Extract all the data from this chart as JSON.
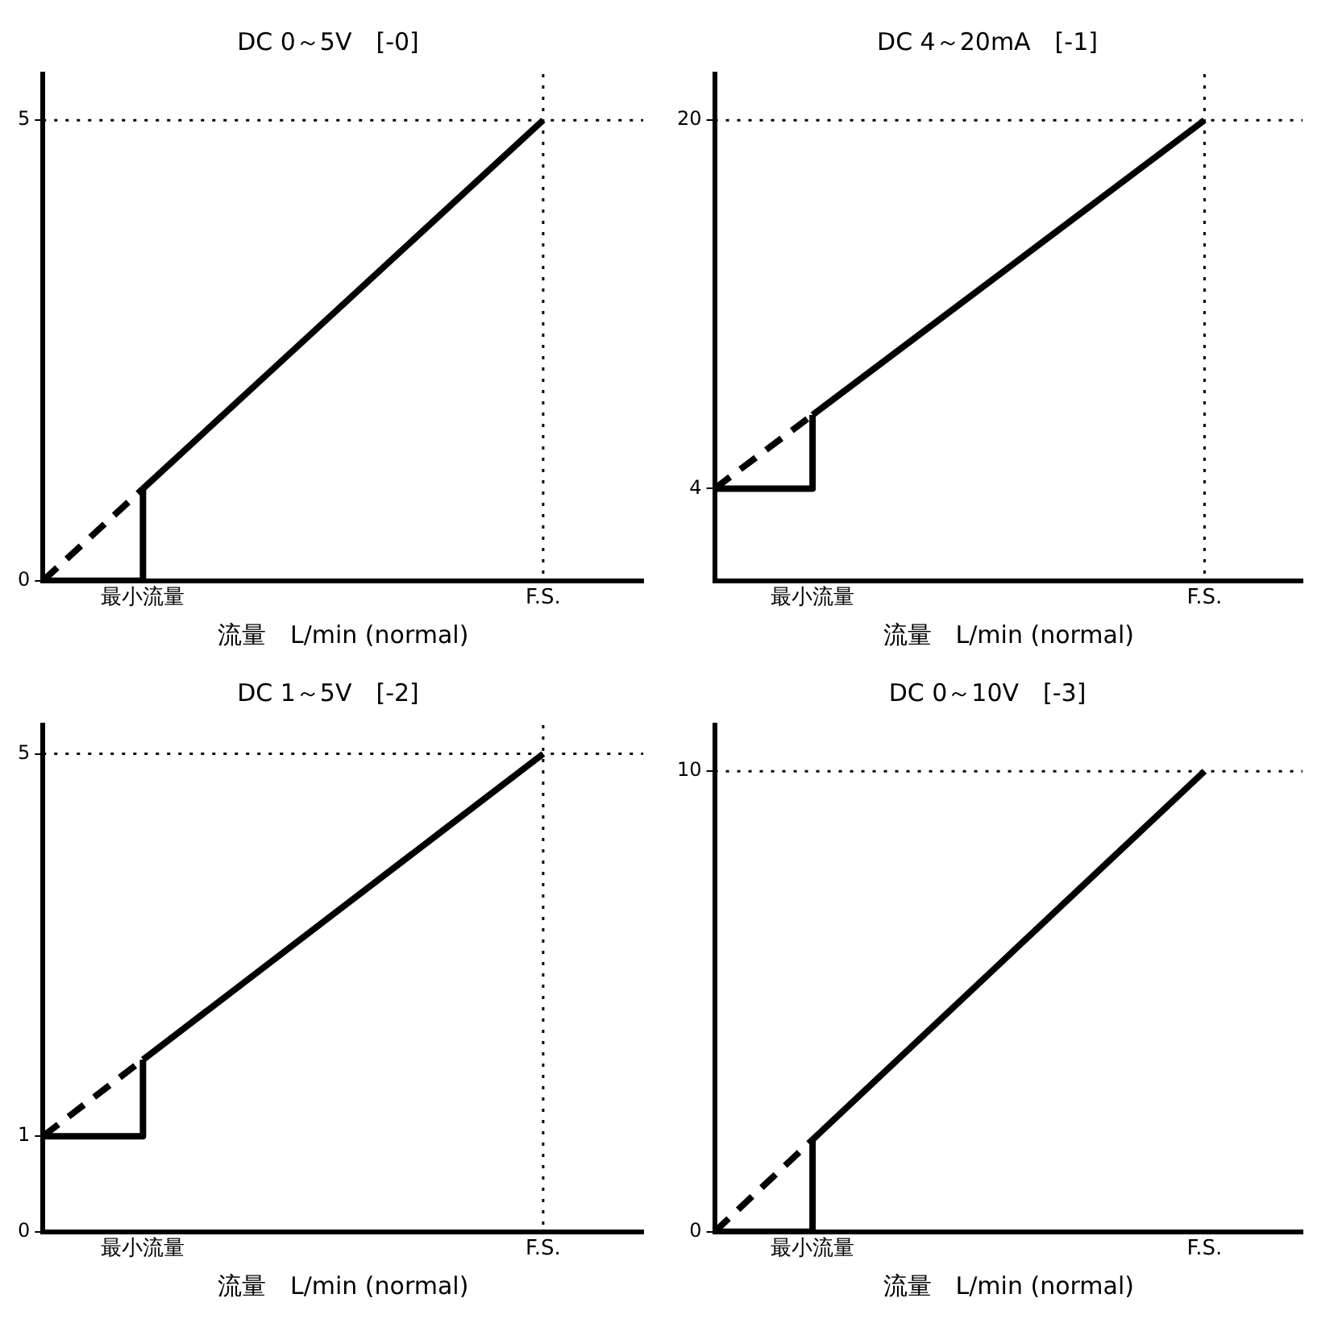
{
  "chart_data": [
    {
      "type": "line",
      "title": "DC 0～5V　[-0]",
      "xlabel": "流量　L/min (normal)",
      "categories": [
        null,
        "最小流量",
        null,
        null,
        null,
        "F.S.",
        null
      ],
      "ylim": [
        0,
        5.5
      ],
      "yticks": [
        0,
        5
      ],
      "grid": false,
      "legend": false,
      "marker": "none",
      "series": [
        {
          "type": "step",
          "color": "#000000",
          "line_style": "solid",
          "values": [
            0,
            1,
            null,
            null,
            null,
            null,
            null
          ]
        },
        {
          "color": "#000000",
          "line_style": "solid",
          "values": [
            null,
            1,
            2,
            3,
            4,
            5,
            null
          ]
        },
        {
          "color": "#000000",
          "line_style": "dashed",
          "values": [
            0,
            1,
            null,
            null,
            null,
            null,
            null
          ]
        }
      ],
      "ref_lines": [
        {
          "axis": "y",
          "value": 5,
          "color": "#000000",
          "line_style": "dotted"
        },
        {
          "axis": "x",
          "value": "F.S.",
          "color": "#000000",
          "line_style": "dotted"
        }
      ]
    },
    {
      "type": "line",
      "title": "DC 4～20mA　[-1]",
      "xlabel": "流量　L/min (normal)",
      "categories": [
        null,
        "最小流量",
        null,
        null,
        null,
        "F.S.",
        null
      ],
      "ylim": [
        0,
        22
      ],
      "yticks": [
        4,
        20
      ],
      "grid": false,
      "legend": false,
      "marker": "none",
      "series": [
        {
          "type": "step",
          "color": "#000000",
          "line_style": "solid",
          "values": [
            4,
            7.2,
            null,
            null,
            null,
            null,
            null
          ]
        },
        {
          "color": "#000000",
          "line_style": "solid",
          "values": [
            null,
            7.2,
            10.4,
            13.6,
            16.8,
            20,
            null
          ]
        },
        {
          "color": "#000000",
          "line_style": "dashed",
          "values": [
            4,
            7.2,
            null,
            null,
            null,
            null,
            null
          ]
        }
      ],
      "ref_lines": [
        {
          "axis": "y",
          "value": 20,
          "color": "#000000",
          "line_style": "dotted"
        },
        {
          "axis": "x",
          "value": "F.S.",
          "color": "#000000",
          "line_style": "dotted"
        }
      ]
    },
    {
      "type": "line",
      "title": "DC 1～5V　[-2]",
      "xlabel": "流量　L/min (normal)",
      "categories": [
        null,
        "最小流量",
        null,
        null,
        null,
        "F.S.",
        null
      ],
      "ylim": [
        0,
        5.3
      ],
      "yticks": [
        0,
        1,
        5
      ],
      "grid": false,
      "legend": false,
      "marker": "none",
      "series": [
        {
          "type": "step",
          "color": "#000000",
          "line_style": "solid",
          "values": [
            1,
            1.8,
            null,
            null,
            null,
            null,
            null
          ]
        },
        {
          "color": "#000000",
          "line_style": "solid",
          "values": [
            null,
            1.8,
            2.6,
            3.4,
            4.2,
            5,
            null
          ]
        },
        {
          "color": "#000000",
          "line_style": "dashed",
          "values": [
            1,
            1.8,
            null,
            null,
            null,
            null,
            null
          ]
        }
      ],
      "ref_lines": [
        {
          "axis": "y",
          "value": 5,
          "color": "#000000",
          "line_style": "dotted"
        },
        {
          "axis": "x",
          "value": "F.S.",
          "color": "#000000",
          "line_style": "dotted"
        }
      ]
    },
    {
      "type": "line",
      "title": "DC 0～10V　[-3]",
      "xlabel": "流量　L/min (normal)",
      "categories": [
        null,
        "最小流量",
        null,
        null,
        null,
        "F.S.",
        null
      ],
      "ylim": [
        0,
        11
      ],
      "yticks": [
        0,
        10
      ],
      "grid": false,
      "legend": false,
      "marker": "none",
      "series": [
        {
          "type": "step",
          "color": "#000000",
          "line_style": "solid",
          "values": [
            0,
            2,
            null,
            null,
            null,
            null,
            null
          ]
        },
        {
          "color": "#000000",
          "line_style": "solid",
          "values": [
            null,
            2,
            4,
            6,
            8,
            10,
            null
          ]
        },
        {
          "color": "#000000",
          "line_style": "dashed",
          "values": [
            0,
            2,
            null,
            null,
            null,
            null,
            null
          ]
        }
      ],
      "ref_lines": [
        {
          "axis": "y",
          "value": 10,
          "color": "#000000",
          "line_style": "dotted"
        }
      ]
    }
  ]
}
